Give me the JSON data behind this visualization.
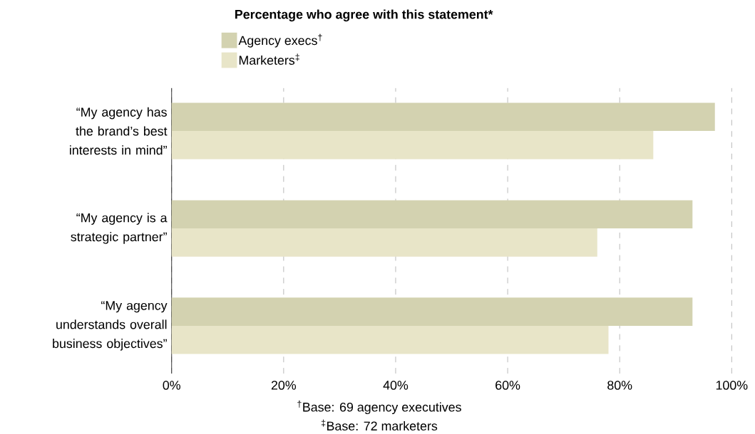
{
  "chart_data": {
    "type": "bar",
    "orientation": "horizontal",
    "title": "Percentage who agree with this statement*",
    "categories": [
      "“My agency has the brand’s best interests in mind”",
      "“My agency is a strategic partner”",
      "“My agency understands overall business objectives”"
    ],
    "series": [
      {
        "name": "Agency execs$^{†}$",
        "color": "#d3d2b0",
        "values": [
          97,
          93,
          93
        ]
      },
      {
        "name": "Marketers$^{‡}$",
        "color": "#e8e5c8",
        "values": [
          86,
          76,
          78
        ]
      }
    ],
    "xlim": [
      0,
      100
    ],
    "xticks": [
      {
        "value": 0,
        "label": "0%"
      },
      {
        "value": 20,
        "label": "20%"
      },
      {
        "value": 40,
        "label": "40%"
      },
      {
        "value": 60,
        "label": "60%"
      },
      {
        "value": 80,
        "label": "80%"
      },
      {
        "value": 100,
        "label": "100%"
      }
    ],
    "grid": "x",
    "legend": "top",
    "annotations": [
      "$^{†}$Base: 69 agency executives",
      "$^{‡}$Base: 72 marketers"
    ]
  }
}
